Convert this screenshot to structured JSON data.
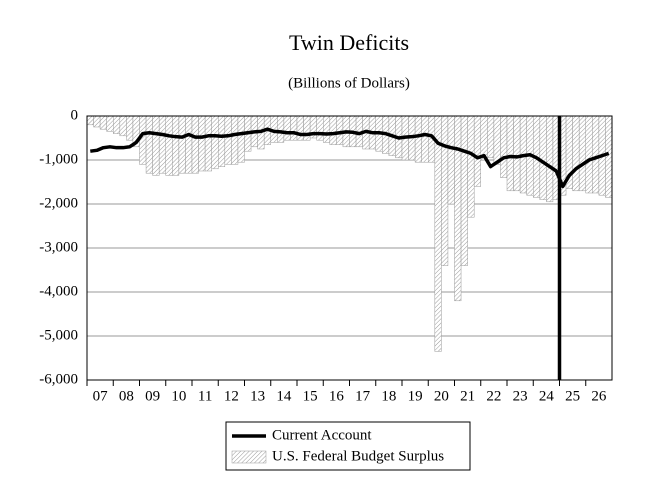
{
  "chart_data": {
    "type": "combo",
    "title": "Twin Deficits",
    "subtitle": "(Billions of Dollars)",
    "categories": [
      null,
      "07",
      null,
      null,
      null,
      "08",
      null,
      null,
      null,
      "09",
      null,
      null,
      null,
      "10",
      null,
      null,
      null,
      "11",
      null,
      null,
      null,
      "12",
      null,
      null,
      null,
      "13",
      null,
      null,
      null,
      "14",
      null,
      null,
      null,
      "15",
      null,
      null,
      null,
      "16",
      null,
      null,
      null,
      "17",
      null,
      null,
      null,
      "18",
      null,
      null,
      null,
      "19",
      null,
      null,
      null,
      "20",
      null,
      null,
      null,
      "21",
      null,
      null,
      null,
      "22",
      null,
      null,
      null,
      "23",
      null,
      null,
      null,
      "24",
      null,
      null,
      null,
      "25",
      null,
      null,
      null,
      "26",
      null,
      null
    ],
    "series": [
      {
        "name": "Current Account",
        "type": "line",
        "color": "#000000",
        "values": [
          -800,
          -780,
          -720,
          -700,
          -720,
          -720,
          -700,
          -600,
          -400,
          -380,
          -400,
          -420,
          -450,
          -470,
          -480,
          -420,
          -480,
          -480,
          -450,
          -450,
          -460,
          -450,
          -420,
          -400,
          -380,
          -360,
          -350,
          -300,
          -350,
          -360,
          -380,
          -380,
          -420,
          -420,
          -400,
          -400,
          -410,
          -400,
          -380,
          -360,
          -370,
          -400,
          -350,
          -380,
          -380,
          -400,
          -450,
          -500,
          -480,
          -470,
          -450,
          -420,
          -450,
          -620,
          -680,
          -720,
          -750,
          -800,
          -850,
          -950,
          -900,
          -1150,
          -1050,
          -950,
          -920,
          -930,
          -900,
          -880,
          -950,
          -1050,
          -1150,
          -1250,
          -1600,
          -1350,
          -1200,
          -1100,
          -1000,
          -950,
          -900,
          -850
        ]
      },
      {
        "name": "U.S. Federal Budget Surplus",
        "type": "bar",
        "color": "#9a9a9a",
        "values": [
          -200,
          -250,
          -300,
          -350,
          -400,
          -450,
          -550,
          -700,
          -1100,
          -1300,
          -1350,
          -1300,
          -1350,
          -1350,
          -1300,
          -1300,
          -1300,
          -1250,
          -1250,
          -1200,
          -1150,
          -1100,
          -1100,
          -1050,
          -800,
          -700,
          -750,
          -650,
          -600,
          -600,
          -550,
          -550,
          -550,
          -550,
          -500,
          -550,
          -600,
          -650,
          -650,
          -700,
          -700,
          -700,
          -750,
          -750,
          -800,
          -850,
          -900,
          -950,
          -1000,
          -1000,
          -1050,
          -1050,
          -1050,
          -5350,
          -3400,
          -2000,
          -4200,
          -3400,
          -2300,
          -1600,
          -1000,
          -950,
          -1100,
          -1400,
          -1700,
          -1700,
          -1750,
          -1800,
          -1850,
          -1900,
          -1950,
          -1900,
          -1800,
          -1650,
          -1700,
          -1700,
          -1750,
          -1750,
          -1800,
          -1850
        ]
      }
    ],
    "vline_category_index": 72,
    "ylim": [
      -6000,
      0
    ],
    "yticks": [
      0,
      {
        "value": -1000,
        "label": "-1,000"
      },
      {
        "value": -2000,
        "label": "-2,000"
      },
      {
        "value": -3000,
        "label": "-3,000"
      },
      {
        "value": -4000,
        "label": "-4,000"
      },
      {
        "value": -5000,
        "label": "-5,000"
      },
      {
        "value": -6000,
        "label": "-6,000"
      }
    ],
    "grid": true
  }
}
